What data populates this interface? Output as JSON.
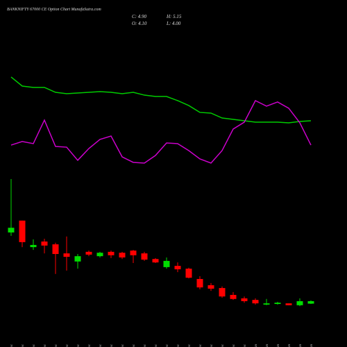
{
  "chart_data": {
    "type": "candlestick",
    "title": "BANKNIFTY 67000 CE Option Chart MunafaSutra.com",
    "ohlc_labels": [
      "C: 4.90",
      "H: 5.15",
      "O: 4.10",
      "L: 4.00"
    ],
    "categories": [
      "01 Dec",
      "02 Dec",
      "03 Dec",
      "04 Dec",
      "05 Dec",
      "06 Dec",
      "09 Dec",
      "10 Dec",
      "11 Dec",
      "12 Dec",
      "13 Dec",
      "16 Dec",
      "17 Dec",
      "18 Dec",
      "19 Dec",
      "20 Dec",
      "23 Dec",
      "24 Dec",
      "26 Dec",
      "27 Dec",
      "30 Dec",
      "31 Dec",
      "01 Jan",
      "02 Jan",
      "03 Jan",
      "06 Jan",
      "07 Jan",
      "08 Jan"
    ],
    "open": [
      26.9,
      30.7,
      22.2,
      24.0,
      23.1,
      20.2,
      17.6,
      20.7,
      19.3,
      20.7,
      20.4,
      21.1,
      20.2,
      18.4,
      15.8,
      16.2,
      15.3,
      12.0,
      10.0,
      9.1,
      6.9,
      5.8,
      5.3,
      3.8,
      4.0,
      4.2,
      3.6,
      4.1
    ],
    "high": [
      44.0,
      30.7,
      24.7,
      24.9,
      23.6,
      25.6,
      20.0,
      21.1,
      20.7,
      21.1,
      20.7,
      21.3,
      20.7,
      18.7,
      18.9,
      17.3,
      15.6,
      12.9,
      10.7,
      9.6,
      7.8,
      6.4,
      5.8,
      5.6,
      4.7,
      4.2,
      5.8,
      5.15
    ],
    "low": [
      25.8,
      22.2,
      21.3,
      20.2,
      13.6,
      14.7,
      15.3,
      19.3,
      18.9,
      18.7,
      18.4,
      17.1,
      17.8,
      17.1,
      15.3,
      14.2,
      12.2,
      8.7,
      8.2,
      6.0,
      5.3,
      4.4,
      3.8,
      3.6,
      3.8,
      3.6,
      3.3,
      4.0
    ],
    "close": [
      28.4,
      23.8,
      22.9,
      22.7,
      20.0,
      19.1,
      19.3,
      19.8,
      20.4,
      19.6,
      18.9,
      19.6,
      18.2,
      17.3,
      17.8,
      15.1,
      12.4,
      9.3,
      8.9,
      6.4,
      5.6,
      4.9,
      4.2,
      4.2,
      4.4,
      3.6,
      4.9,
      4.9
    ],
    "ylim": [
      0,
      45
    ],
    "up_color": "#00dd00",
    "down_color": "#ff0000",
    "indicator_ylim": [
      0,
      100
    ],
    "indicators": [
      {
        "color": "#00cc00",
        "values": [
          92.7,
          84,
          82.7,
          82.7,
          78,
          76.7,
          77.3,
          78,
          78.7,
          78,
          76.7,
          78,
          75.3,
          74,
          74,
          70,
          65.3,
          58.7,
          58,
          53.3,
          52,
          50.7,
          49.3,
          49.3,
          49.3,
          48.7,
          50,
          50.7
        ]
      },
      {
        "color": "#cc00cc",
        "values": [
          27.3,
          30.7,
          28.7,
          51.3,
          26,
          25.3,
          12.7,
          24,
          32.7,
          36,
          16,
          10.7,
          10,
          17.3,
          29.3,
          28.7,
          22,
          14,
          10,
          22,
          42.7,
          49.3,
          70,
          64.7,
          68.7,
          62.7,
          48.7,
          27.3
        ]
      }
    ]
  }
}
